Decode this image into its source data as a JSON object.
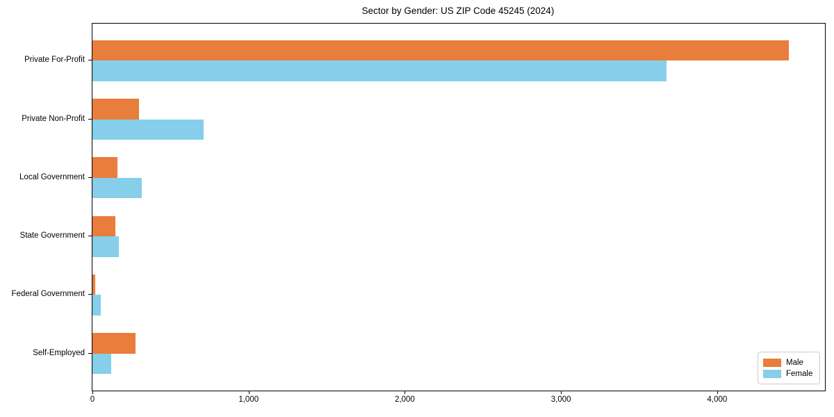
{
  "chart_data": {
    "type": "bar",
    "orientation": "horizontal",
    "title": "Sector by Gender: US ZIP Code 45245 (2024)",
    "categories": [
      "Private For-Profit",
      "Private Non-Profit",
      "Local Government",
      "State Government",
      "Federal Government",
      "Self-Employed"
    ],
    "series": [
      {
        "name": "Male",
        "color": "#E87D3C",
        "values": [
          4460,
          300,
          160,
          145,
          19,
          278
        ]
      },
      {
        "name": "Female",
        "color": "#87CEEB",
        "values": [
          3674,
          714,
          317,
          167,
          52,
          118
        ]
      }
    ],
    "xlabel": "",
    "ylabel": "",
    "xlim": [
      0,
      4690
    ],
    "x_ticks": [
      {
        "value": 0,
        "label": "0"
      },
      {
        "value": 1000,
        "label": "1,000"
      },
      {
        "value": 2000,
        "label": "2,000"
      },
      {
        "value": 3000,
        "label": "3,000"
      },
      {
        "value": 4000,
        "label": "4,000"
      }
    ],
    "grid": false,
    "legend_position": "lower right",
    "bar_height_fraction": 0.35
  }
}
